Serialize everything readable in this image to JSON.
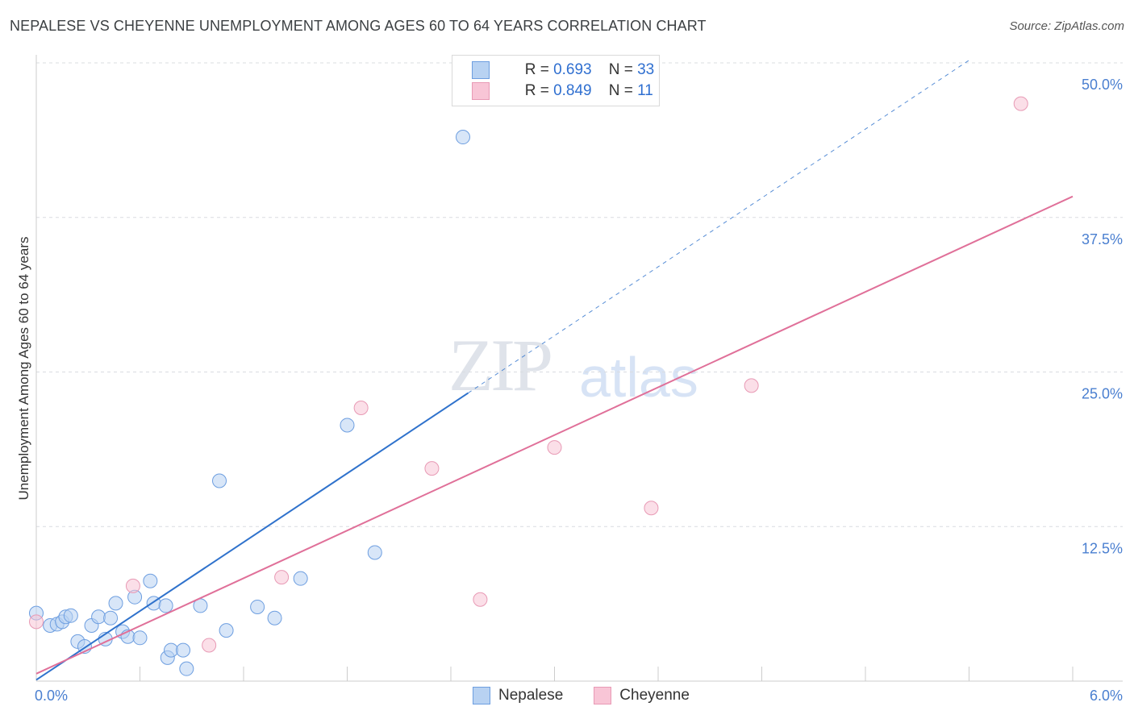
{
  "title": "NEPALESE VS CHEYENNE UNEMPLOYMENT AMONG AGES 60 TO 64 YEARS CORRELATION CHART",
  "source": "Source: ZipAtlas.com",
  "watermark": {
    "zip": "ZIP",
    "atlas": "atlas"
  },
  "colors": {
    "nepalese": "#2f72cc",
    "cheyenne": "#e07099",
    "nepalese_fill": "#b8d2f2",
    "cheyenne_fill": "#f8c5d6"
  },
  "legend_top": {
    "rows": [
      {
        "r_label": "R = ",
        "r": "0.693",
        "n_label": "N = ",
        "n": "33"
      },
      {
        "r_label": "R = ",
        "r": "0.849",
        "n_label": "N = ",
        "n": "11"
      }
    ]
  },
  "legend_bottom": [
    "Nepalese",
    "Cheyenne"
  ],
  "chart_data": {
    "type": "scatter",
    "title": "NEPALESE VS CHEYENNE UNEMPLOYMENT AMONG AGES 60 TO 64 YEARS CORRELATION CHART",
    "xlabel": "",
    "ylabel": "Unemployment Among Ages 60 to 64 years",
    "xlim": [
      0,
      6
    ],
    "ylim": [
      0,
      50
    ],
    "x_tick_labels": [
      "0.0%",
      "6.0%"
    ],
    "y_ticks": [
      12.5,
      25,
      37.5,
      50
    ],
    "y_tick_labels": [
      "12.5%",
      "25.0%",
      "37.5%",
      "50.0%"
    ],
    "series": [
      {
        "name": "Nepalese",
        "r": 0.693,
        "n": 33,
        "trend": {
          "x0": 0,
          "y0": 0.1,
          "x1": 2.5,
          "y1": 23.3,
          "dashed_to_x": 5.4
        },
        "points": [
          [
            0.0,
            5.5
          ],
          [
            0.08,
            4.5
          ],
          [
            0.12,
            4.6
          ],
          [
            0.15,
            4.8
          ],
          [
            0.17,
            5.2
          ],
          [
            0.2,
            5.3
          ],
          [
            0.24,
            3.2
          ],
          [
            0.28,
            2.8
          ],
          [
            0.32,
            4.5
          ],
          [
            0.36,
            5.2
          ],
          [
            0.4,
            3.4
          ],
          [
            0.43,
            5.1
          ],
          [
            0.46,
            6.3
          ],
          [
            0.5,
            4.0
          ],
          [
            0.53,
            3.6
          ],
          [
            0.57,
            6.8
          ],
          [
            0.6,
            3.5
          ],
          [
            0.66,
            8.1
          ],
          [
            0.68,
            6.3
          ],
          [
            0.75,
            6.1
          ],
          [
            0.76,
            1.9
          ],
          [
            0.78,
            2.5
          ],
          [
            0.85,
            2.5
          ],
          [
            0.87,
            1.0
          ],
          [
            0.95,
            6.1
          ],
          [
            1.06,
            16.2
          ],
          [
            1.1,
            4.1
          ],
          [
            1.28,
            6.0
          ],
          [
            1.38,
            5.1
          ],
          [
            1.53,
            8.3
          ],
          [
            1.8,
            20.7
          ],
          [
            1.96,
            10.4
          ],
          [
            2.47,
            44.0
          ]
        ]
      },
      {
        "name": "Cheyenne",
        "r": 0.849,
        "n": 11,
        "trend": {
          "x0": 0,
          "y0": 0.6,
          "x1": 6.0,
          "y1": 39.2
        },
        "points": [
          [
            0.0,
            4.8
          ],
          [
            0.56,
            7.7
          ],
          [
            1.0,
            2.9
          ],
          [
            1.42,
            8.4
          ],
          [
            1.88,
            22.1
          ],
          [
            2.29,
            17.2
          ],
          [
            2.57,
            6.6
          ],
          [
            3.0,
            18.9
          ],
          [
            3.56,
            14.0
          ],
          [
            4.14,
            23.9
          ],
          [
            5.7,
            46.7
          ]
        ]
      }
    ]
  }
}
